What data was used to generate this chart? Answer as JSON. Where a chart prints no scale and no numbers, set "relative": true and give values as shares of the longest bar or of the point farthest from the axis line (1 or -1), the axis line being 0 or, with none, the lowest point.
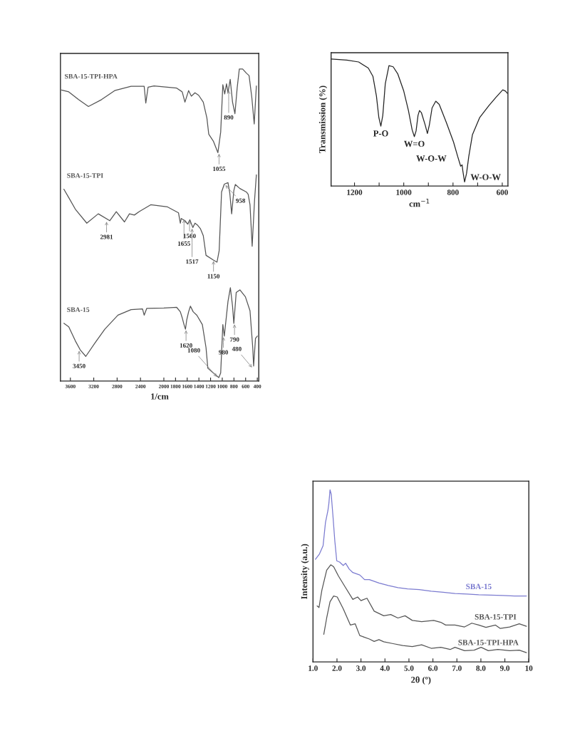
{
  "chart_data": [
    {
      "type": "line",
      "relative": true,
      "xlabel": "1/cm",
      "xlim": [
        3770,
        375
      ],
      "xticks": [
        3600,
        3200,
        2800,
        2400,
        2000,
        1800,
        1600,
        1400,
        1200,
        1000,
        800,
        600,
        400
      ],
      "tick_labels": "x",
      "grid": false,
      "legend": false,
      "series": [
        {
          "name": "SBA-15-TPI-HPA",
          "color": "#555555",
          "x": [
            3752,
            3628,
            3460,
            3291,
            3067,
            2842,
            2561,
            2337,
            2309,
            2270,
            2168,
            1780,
            1686,
            1639,
            1576,
            1529,
            1467,
            1404,
            1325,
            1263,
            1231,
            1153,
            1075,
            1027,
            990,
            958,
            927,
            902,
            864,
            824,
            783,
            745,
            708,
            651,
            588,
            541,
            494,
            453,
            416
          ],
          "values": [
            0.933,
            0.927,
            0.902,
            0.88,
            0.902,
            0.931,
            0.945,
            0.945,
            0.891,
            0.942,
            0.946,
            0.939,
            0.927,
            0.894,
            0.931,
            0.913,
            0.924,
            0.916,
            0.894,
            0.843,
            0.791,
            0.769,
            0.732,
            0.798,
            0.95,
            0.92,
            0.953,
            0.924,
            0.967,
            0.894,
            0.857,
            0.939,
            1.0,
            1.0,
            0.987,
            0.979,
            0.909,
            0.824,
            0.946
          ]
        },
        {
          "name": "SBA-15-TPI",
          "color": "#555555",
          "x": [
            3712,
            3628,
            3516,
            3319,
            3123,
            2926,
            2814,
            2674,
            2589,
            2505,
            2421,
            2225,
            1937,
            1749,
            1718,
            1702,
            1639,
            1592,
            1555,
            1504,
            1467,
            1420,
            1373,
            1325,
            1278,
            1153,
            1090,
            1053,
            1012,
            965,
            902,
            871,
            839,
            802,
            776,
            698,
            588,
            557,
            525,
            488,
            447,
            416
          ],
          "values": [
            0.615,
            0.588,
            0.551,
            0.506,
            0.536,
            0.514,
            0.543,
            0.51,
            0.536,
            0.532,
            0.543,
            0.565,
            0.558,
            0.539,
            0.506,
            0.521,
            0.514,
            0.503,
            0.517,
            0.492,
            0.506,
            0.499,
            0.488,
            0.466,
            0.403,
            0.388,
            0.381,
            0.418,
            0.606,
            0.631,
            0.636,
            0.602,
            0.536,
            0.61,
            0.63,
            0.617,
            0.606,
            0.599,
            0.565,
            0.432,
            0.58,
            0.661
          ]
        },
        {
          "name": "SBA-15",
          "color": "#555555",
          "x": [
            3712,
            3628,
            3516,
            3432,
            3336,
            3179,
            3011,
            2786,
            2561,
            2365,
            2337,
            2292,
            2000,
            1780,
            1718,
            1686,
            1655,
            1630,
            1608,
            1576,
            1545,
            1498,
            1435,
            1341,
            1278,
            1247,
            1153,
            1059,
            1027,
            990,
            965,
            902,
            861,
            824,
            802,
            761,
            698,
            604,
            525,
            478,
            463,
            431,
            400
          ],
          "values": [
            0.185,
            0.174,
            0.129,
            0.1,
            0.079,
            0.122,
            0.166,
            0.211,
            0.229,
            0.231,
            0.211,
            0.233,
            0.234,
            0.236,
            0.222,
            0.203,
            0.181,
            0.166,
            0.196,
            0.222,
            0.24,
            0.222,
            0.211,
            0.181,
            0.107,
            0.041,
            0.026,
            0.011,
            0.026,
            0.181,
            0.144,
            0.255,
            0.299,
            0.24,
            0.185,
            0.284,
            0.292,
            0.27,
            0.225,
            0.107,
            0.048,
            0.137,
            0.144
          ]
        }
      ],
      "annotations": [
        {
          "text": "890",
          "x": 890,
          "y": 0.935
        },
        {
          "text": "1055",
          "x": 1055,
          "y": 0.732
        },
        {
          "text": "2981",
          "x": 2981,
          "y": 0.514
        },
        {
          "text": "1655",
          "x": 1655,
          "y": 0.521
        },
        {
          "text": "1560",
          "x": 1560,
          "y": 0.517
        },
        {
          "text": "1517",
          "x": 1517,
          "y": 0.492
        },
        {
          "text": "958",
          "x": 958,
          "y": 0.63
        },
        {
          "text": "1150",
          "x": 1150,
          "y": 0.388
        },
        {
          "text": "3450",
          "x": 3450,
          "y": 0.1
        },
        {
          "text": "1620",
          "x": 1620,
          "y": 0.166
        },
        {
          "text": "980",
          "x": 980,
          "y": 0.144
        },
        {
          "text": "790",
          "x": 790,
          "y": 0.185
        },
        {
          "text": "1080",
          "x": 1080,
          "y": 0.011
        },
        {
          "text": "480",
          "x": 480,
          "y": 0.041
        }
      ]
    },
    {
      "type": "line",
      "relative": true,
      "xlabel": "cm$^{−1}$",
      "ylabel": "Transmission (%)",
      "xlim": [
        1295,
        577
      ],
      "xticks": [
        1200,
        {
          "value": 1100,
          "label": null
        },
        1000,
        {
          "value": 900,
          "label": null
        },
        800,
        {
          "value": 700,
          "label": null
        },
        600
      ],
      "tick_labels": "x",
      "grid": false,
      "legend": false,
      "series": [
        {
          "color": "#222222",
          "x": [
            1293,
            1231,
            1183,
            1144,
            1125,
            1111,
            1101,
            1093,
            1085,
            1075,
            1060,
            1043,
            1024,
            1000,
            981,
            966,
            957,
            950,
            942,
            936,
            928,
            913,
            904,
            896,
            885,
            870,
            856,
            827,
            798,
            781,
            769,
            763,
            760,
            753,
            745,
            736,
            721,
            692,
            654,
            625,
            598,
            587,
            579
          ],
          "values": [
            1.0,
            0.992,
            0.977,
            0.929,
            0.863,
            0.71,
            0.538,
            0.471,
            0.557,
            0.805,
            0.948,
            0.939,
            0.882,
            0.748,
            0.595,
            0.443,
            0.389,
            0.433,
            0.557,
            0.595,
            0.576,
            0.481,
            0.414,
            0.481,
            0.615,
            0.668,
            0.643,
            0.5,
            0.347,
            0.233,
            0.156,
            0.166,
            0.118,
            0.032,
            0.099,
            0.233,
            0.405,
            0.538,
            0.634,
            0.7,
            0.757,
            0.748,
            0.729
          ]
        }
      ],
      "annotations": [
        {
          "text": "P-O",
          "x": 1093,
          "y": 0.471
        },
        {
          "text": "W=O",
          "x": 957,
          "y": 0.389
        },
        {
          "text": "W-O-W",
          "x": 904,
          "y": 0.414
        },
        {
          "text": "W-O-W",
          "x": 753,
          "y": 0.032
        }
      ]
    },
    {
      "type": "line",
      "relative": true,
      "xlabel": "2θ (º)",
      "ylabel": "Intensity (a.u.)",
      "xlim": [
        1,
        10
      ],
      "xticks": [
        {
          "value": 1,
          "label": "1.0"
        },
        {
          "value": 2,
          "label": "2.0"
        },
        {
          "value": 3,
          "label": "3.0"
        },
        {
          "value": 4,
          "label": "4.0"
        },
        {
          "value": 5,
          "label": "5.0"
        },
        {
          "value": 6,
          "label": "6.0"
        },
        {
          "value": 7,
          "label": "7.0"
        },
        {
          "value": 8,
          "label": "8.0"
        },
        {
          "value": 9,
          "label": "9.0"
        },
        10
      ],
      "tick_labels": "x",
      "grid": false,
      "legend": false,
      "series": [
        {
          "name": "SBA-15",
          "color": "#7b7bd0",
          "x": [
            1.1,
            1.27,
            1.42,
            1.52,
            1.62,
            1.66,
            1.71,
            1.76,
            1.83,
            1.91,
            1.99,
            2.11,
            2.26,
            2.36,
            2.51,
            2.66,
            2.95,
            3.15,
            3.35,
            3.75,
            4.14,
            4.54,
            4.94,
            5.43,
            5.93,
            6.43,
            6.92,
            7.42,
            7.91,
            8.41,
            8.91,
            9.4,
            9.9
          ],
          "values": [
            0.596,
            0.627,
            0.675,
            0.81,
            0.878,
            0.919,
            1.0,
            0.973,
            0.851,
            0.702,
            0.587,
            0.58,
            0.56,
            0.573,
            0.539,
            0.519,
            0.505,
            0.478,
            0.478,
            0.458,
            0.444,
            0.431,
            0.424,
            0.42,
            0.411,
            0.404,
            0.397,
            0.394,
            0.39,
            0.388,
            0.386,
            0.383,
            0.383
          ]
        },
        {
          "name": "SBA-15-TPI",
          "color": "#555555",
          "x": [
            1.17,
            1.25,
            1.37,
            1.57,
            1.74,
            1.86,
            2.06,
            2.36,
            2.66,
            2.86,
            3.0,
            3.25,
            3.55,
            3.95,
            4.24,
            4.54,
            4.84,
            5.14,
            5.53,
            6.03,
            6.33,
            6.53,
            6.92,
            7.32,
            7.62,
            7.91,
            8.21,
            8.61,
            8.81,
            9.2,
            9.6,
            9.9
          ],
          "values": [
            0.325,
            0.316,
            0.417,
            0.533,
            0.564,
            0.553,
            0.499,
            0.431,
            0.363,
            0.377,
            0.356,
            0.37,
            0.295,
            0.268,
            0.275,
            0.255,
            0.268,
            0.241,
            0.234,
            0.241,
            0.23,
            0.214,
            0.214,
            0.203,
            0.225,
            0.214,
            0.201,
            0.214,
            0.194,
            0.203,
            0.221,
            0.207
          ]
        },
        {
          "name": "SBA-15-TPI-HPA",
          "color": "#555555",
          "x": [
            1.45,
            1.57,
            1.71,
            1.86,
            2.01,
            2.26,
            2.56,
            2.76,
            2.95,
            3.35,
            3.55,
            3.75,
            3.95,
            4.34,
            4.74,
            5.14,
            5.53,
            5.93,
            6.33,
            6.72,
            6.92,
            7.32,
            7.72,
            8.01,
            8.31,
            8.71,
            9.2,
            9.6,
            9.9
          ],
          "values": [
            0.16,
            0.255,
            0.35,
            0.383,
            0.377,
            0.309,
            0.214,
            0.221,
            0.153,
            0.133,
            0.119,
            0.129,
            0.117,
            0.106,
            0.095,
            0.089,
            0.099,
            0.079,
            0.085,
            0.072,
            0.085,
            0.065,
            0.068,
            0.085,
            0.065,
            0.072,
            0.065,
            0.068,
            0.054
          ]
        }
      ]
    }
  ]
}
